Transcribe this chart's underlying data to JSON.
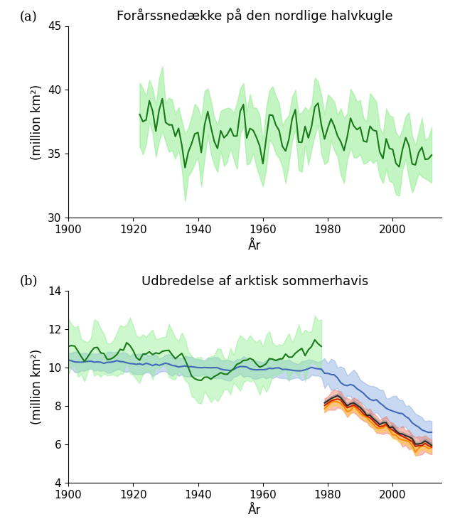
{
  "title_a": "Forårssnedække på den nordlige halvkugle",
  "title_b": "Udbredelse af arktisk sommerhavis",
  "label_a": "(a)",
  "label_b": "(b)",
  "xlabel": "År",
  "ylabel": "(million km²)",
  "panel_a": {
    "xlim": [
      1900,
      2015
    ],
    "ylim": [
      30,
      45
    ],
    "yticks": [
      30,
      35,
      40,
      45
    ],
    "xticks": [
      1900,
      1920,
      1940,
      1960,
      1980,
      2000
    ],
    "line_color": "#1a7a1a",
    "shade_color": "#90ee90",
    "shade_alpha": 0.55
  },
  "panel_b": {
    "xlim": [
      1900,
      2015
    ],
    "ylim": [
      4,
      14
    ],
    "yticks": [
      4,
      6,
      8,
      10,
      12,
      14
    ],
    "xticks": [
      1900,
      1920,
      1940,
      1960,
      1980,
      2000
    ],
    "green_line_color": "#1a7a1a",
    "green_shade_color": "#90ee90",
    "blue_line_color": "#4169b8",
    "blue_shade_color": "#87a9e0",
    "red_line_color": "#cc2200",
    "red_shade_color": "#f08070",
    "dark_line_color": "#2a2a2a",
    "dark_shade_color": "#888888",
    "orange_line_color": "#ff8c00",
    "orange_shade_color": "#ffcc44",
    "shade_alpha": 0.45
  },
  "background_color": "#ffffff",
  "title_fontsize": 13,
  "label_fontsize": 13,
  "tick_fontsize": 11,
  "axis_label_fontsize": 12
}
